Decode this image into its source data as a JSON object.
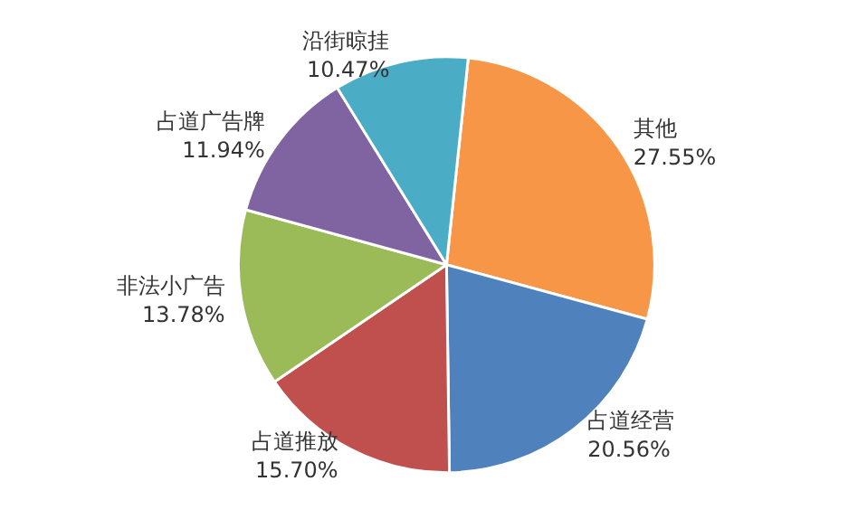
{
  "chart_data": {
    "type": "pie",
    "categories": [
      "其他",
      "占道经营",
      "占道推放",
      "非法小广告",
      "占道广告牌",
      "沿街晾挂"
    ],
    "values": [
      27.55,
      20.56,
      15.7,
      13.78,
      11.94,
      10.47
    ],
    "value_labels": [
      "27.55%",
      "20.56%",
      "15.70%",
      "13.78%",
      "11.94%",
      "10.47%"
    ],
    "colors": [
      "#f79646",
      "#4f81bd",
      "#c0504d",
      "#9bbb59",
      "#8064a2",
      "#4bacc6"
    ],
    "legend": false
  }
}
